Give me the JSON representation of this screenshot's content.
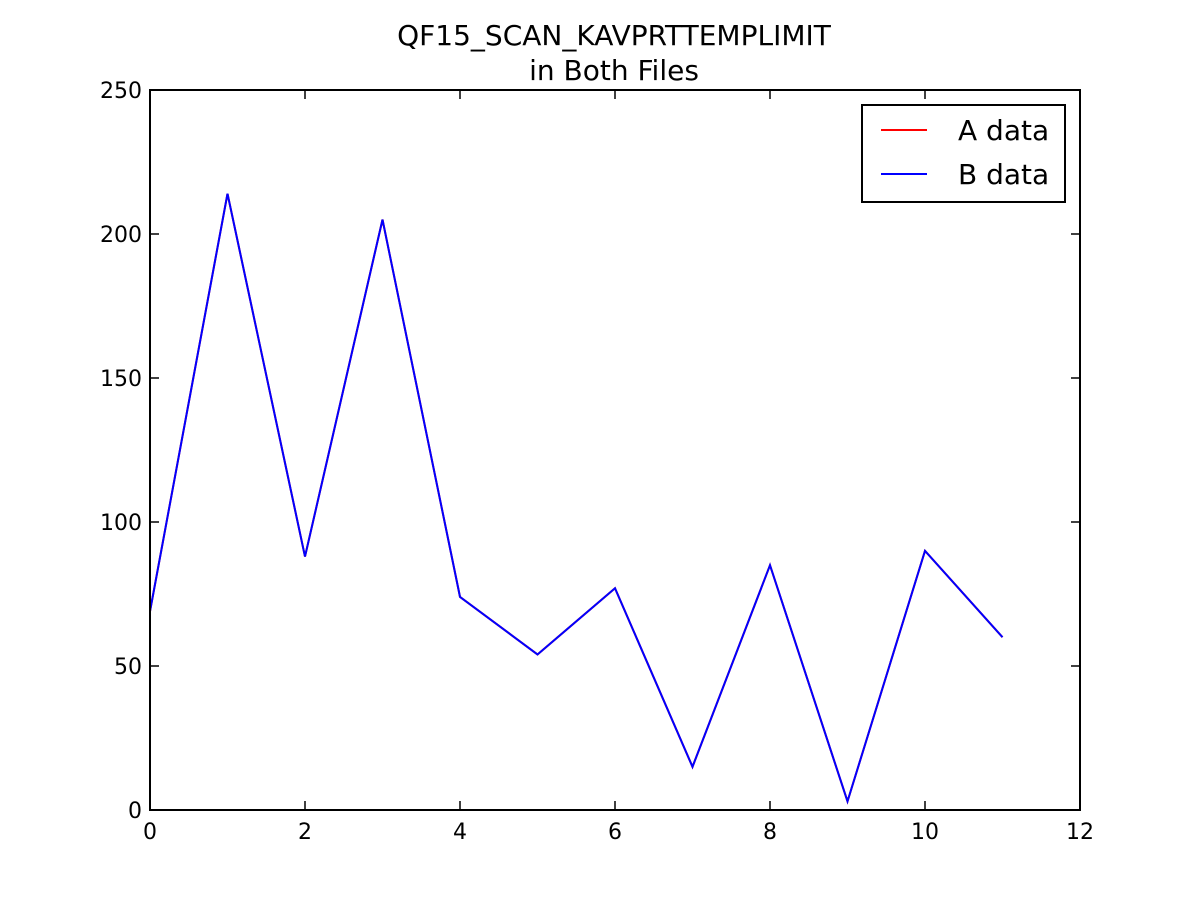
{
  "chart_data": {
    "type": "line",
    "title": "QF15_SCAN_KAVPRTTEMPLIMIT",
    "subtitle": "in Both Files",
    "xlabel": "",
    "ylabel": "",
    "xlim": [
      0,
      12
    ],
    "ylim": [
      0,
      250
    ],
    "xticks": [
      0,
      2,
      4,
      6,
      8,
      10,
      12
    ],
    "yticks": [
      0,
      50,
      100,
      150,
      200,
      250
    ],
    "xtick_labels": [
      "0",
      "2",
      "4",
      "6",
      "8",
      "10",
      "12"
    ],
    "ytick_labels": [
      "0",
      "50",
      "100",
      "150",
      "200",
      "250"
    ],
    "grid": false,
    "legend_position": "top-right",
    "x": [
      0,
      1,
      2,
      3,
      4,
      5,
      6,
      7,
      8,
      9,
      10,
      11
    ],
    "series": [
      {
        "name": "A data",
        "color": "#ff0000",
        "values": [
          69,
          214,
          88,
          205,
          74,
          54,
          77,
          15,
          85,
          3,
          90,
          60
        ]
      },
      {
        "name": "B data",
        "color": "#0000ff",
        "values": [
          69,
          214,
          88,
          205,
          74,
          54,
          77,
          15,
          85,
          3,
          90,
          60
        ]
      }
    ]
  }
}
